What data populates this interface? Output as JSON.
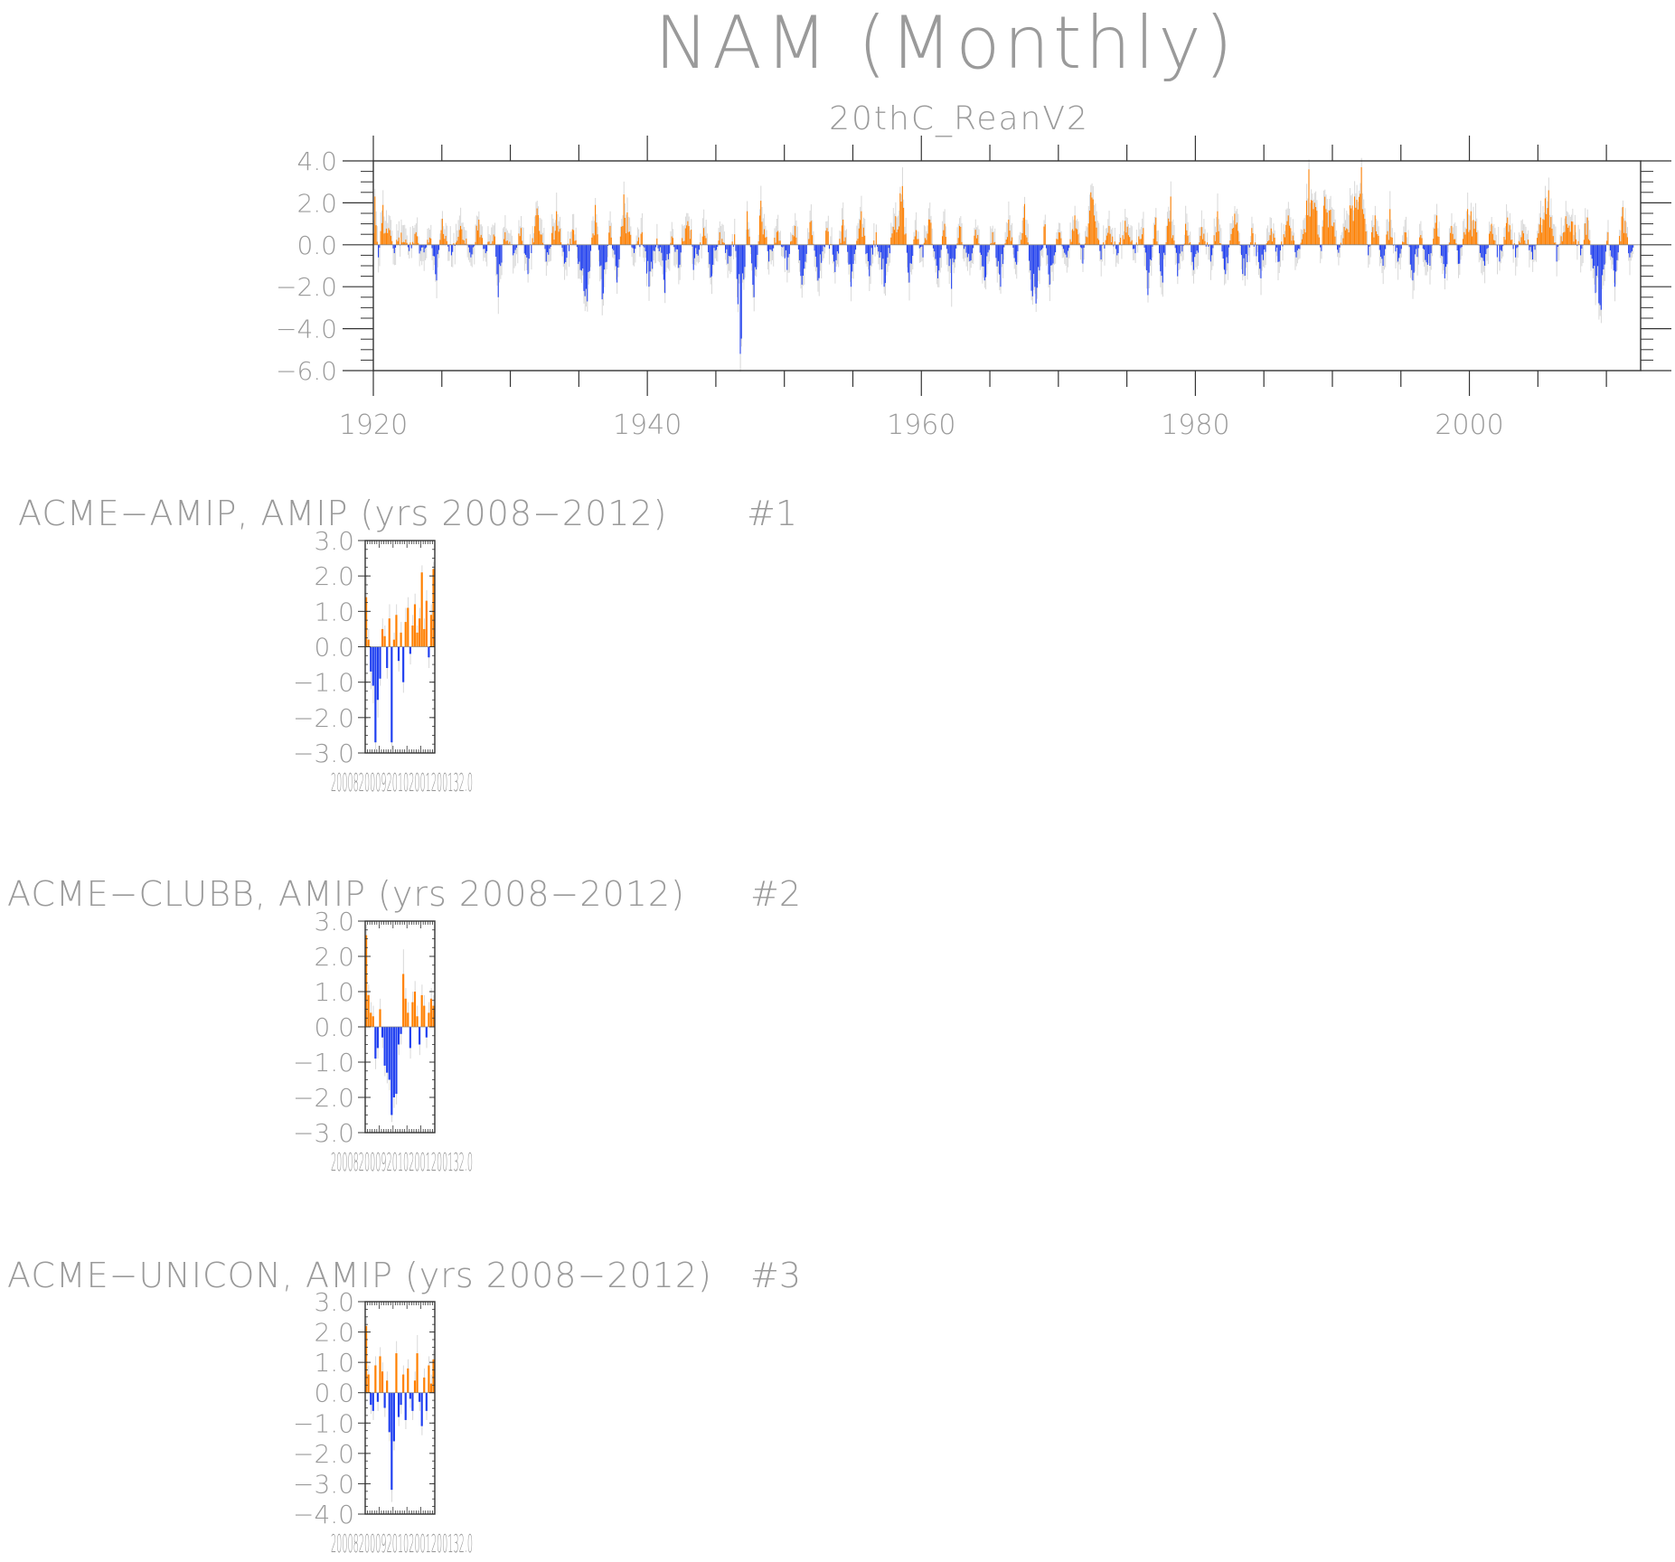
{
  "figure": {
    "title": "NAM (Monthly)"
  },
  "colors": {
    "positive": "#ff8000",
    "negative": "#1f3ff0",
    "text": "#9a9a9a",
    "axis": "#333333"
  },
  "chart_data": [
    {
      "type": "bar",
      "subtitle": "20thC_ReanV2",
      "x_start": 1920.0,
      "x_end": 2012.0,
      "xlim": [
        1920,
        2012.5
      ],
      "ylim": [
        -6.0,
        4.0
      ],
      "xticks": [
        1920,
        1940,
        1960,
        1980,
        2000
      ],
      "yticks": [
        "4.0",
        "2.0",
        "0.0",
        "−2.0",
        "−4.0",
        "−6.0"
      ],
      "ytick_values": [
        4,
        2,
        0,
        -2,
        -4,
        -6
      ],
      "keypoints": [
        [
          1920.1,
          2.3
        ],
        [
          1920.4,
          -0.6
        ],
        [
          1920.7,
          1.9
        ],
        [
          1921.2,
          0.7
        ],
        [
          1921.5,
          -0.4
        ],
        [
          1922.0,
          0.5
        ],
        [
          1922.6,
          -0.3
        ],
        [
          1923.1,
          0.6
        ],
        [
          1923.5,
          -0.7
        ],
        [
          1924.2,
          0.3
        ],
        [
          1924.6,
          -1.7
        ],
        [
          1925.0,
          1.4
        ],
        [
          1925.7,
          -0.5
        ],
        [
          1926.4,
          0.9
        ],
        [
          1927.1,
          -0.6
        ],
        [
          1927.7,
          1.2
        ],
        [
          1928.2,
          -0.4
        ],
        [
          1928.9,
          0.4
        ],
        [
          1929.1,
          -2.5
        ],
        [
          1929.6,
          0.6
        ],
        [
          1930.2,
          -0.5
        ],
        [
          1930.8,
          0.8
        ],
        [
          1931.3,
          -1.4
        ],
        [
          1932.0,
          1.9
        ],
        [
          1932.6,
          -0.8
        ],
        [
          1933.4,
          1.6
        ],
        [
          1934.0,
          -0.9
        ],
        [
          1934.6,
          0.7
        ],
        [
          1935.1,
          -1.2
        ],
        [
          1935.6,
          -2.7
        ],
        [
          1936.2,
          1.9
        ],
        [
          1936.7,
          -2.6
        ],
        [
          1937.3,
          0.9
        ],
        [
          1937.8,
          -1.8
        ],
        [
          1938.3,
          2.4
        ],
        [
          1939.0,
          -0.7
        ],
        [
          1939.6,
          0.6
        ],
        [
          1940.1,
          -2.0
        ],
        [
          1940.7,
          0.3
        ],
        [
          1941.3,
          -2.3
        ],
        [
          1941.8,
          0.4
        ],
        [
          1942.3,
          -1.1
        ],
        [
          1943.0,
          2.3
        ],
        [
          1943.4,
          -1.2
        ],
        [
          1944.1,
          0.8
        ],
        [
          1944.7,
          -1.5
        ],
        [
          1945.3,
          0.6
        ],
        [
          1945.9,
          -0.9
        ],
        [
          1946.4,
          0.5
        ],
        [
          1946.8,
          -5.2
        ],
        [
          1947.3,
          1.6
        ],
        [
          1947.8,
          -2.5
        ],
        [
          1948.3,
          2.1
        ],
        [
          1948.9,
          -0.8
        ],
        [
          1949.5,
          0.7
        ],
        [
          1950.2,
          -1.2
        ],
        [
          1950.8,
          0.9
        ],
        [
          1951.3,
          -1.9
        ],
        [
          1952.0,
          1.3
        ],
        [
          1952.5,
          -2.2
        ],
        [
          1953.1,
          0.8
        ],
        [
          1953.7,
          -1.3
        ],
        [
          1954.3,
          1.2
        ],
        [
          1954.9,
          -2.0
        ],
        [
          1955.6,
          1.6
        ],
        [
          1956.2,
          -1.5
        ],
        [
          1956.7,
          0.6
        ],
        [
          1957.3,
          -2.0
        ],
        [
          1958.0,
          1.1
        ],
        [
          1958.6,
          2.8
        ],
        [
          1959.1,
          -1.8
        ],
        [
          1959.6,
          0.7
        ],
        [
          1960.1,
          -0.6
        ],
        [
          1960.6,
          1.2
        ],
        [
          1961.2,
          -1.6
        ],
        [
          1961.7,
          1.0
        ],
        [
          1962.2,
          -2.1
        ],
        [
          1962.8,
          0.9
        ],
        [
          1963.5,
          -1.1
        ],
        [
          1964.0,
          0.8
        ],
        [
          1964.6,
          -1.7
        ],
        [
          1965.2,
          0.6
        ],
        [
          1965.8,
          -2.0
        ],
        [
          1966.4,
          1.2
        ],
        [
          1967.0,
          -1.3
        ],
        [
          1967.5,
          2.2
        ],
        [
          1968.0,
          -2.3
        ],
        [
          1968.4,
          -2.8
        ],
        [
          1969.0,
          1.1
        ],
        [
          1969.4,
          -1.9
        ],
        [
          1970.0,
          0.8
        ],
        [
          1970.6,
          -0.6
        ],
        [
          1971.2,
          1.4
        ],
        [
          1971.8,
          -0.9
        ],
        [
          1972.4,
          2.5
        ],
        [
          1973.1,
          -0.7
        ],
        [
          1973.7,
          0.9
        ],
        [
          1974.3,
          -0.5
        ],
        [
          1975.0,
          1.2
        ],
        [
          1975.6,
          -0.4
        ],
        [
          1976.2,
          0.8
        ],
        [
          1976.5,
          -3.0
        ],
        [
          1977.1,
          1.3
        ],
        [
          1977.6,
          -1.8
        ],
        [
          1978.2,
          2.3
        ],
        [
          1978.7,
          -1.5
        ],
        [
          1979.3,
          1.0
        ],
        [
          1979.9,
          -1.2
        ],
        [
          1980.5,
          0.9
        ],
        [
          1981.1,
          -0.8
        ],
        [
          1981.6,
          1.6
        ],
        [
          1982.2,
          -1.4
        ],
        [
          1983.0,
          1.9
        ],
        [
          1983.5,
          -2.1
        ],
        [
          1984.1,
          0.8
        ],
        [
          1984.8,
          -1.6
        ],
        [
          1985.5,
          1.0
        ],
        [
          1986.1,
          -0.8
        ],
        [
          1986.8,
          1.4
        ],
        [
          1987.4,
          -0.6
        ],
        [
          1988.0,
          1.2
        ],
        [
          1988.3,
          3.6
        ],
        [
          1988.8,
          1.8
        ],
        [
          1989.2,
          -0.3
        ],
        [
          1989.5,
          3.5
        ],
        [
          1990.0,
          1.6
        ],
        [
          1990.5,
          -0.4
        ],
        [
          1991.0,
          1.4
        ],
        [
          1991.6,
          2.3
        ],
        [
          1992.1,
          3.7
        ],
        [
          1992.6,
          -0.5
        ],
        [
          1993.1,
          1.4
        ],
        [
          1993.7,
          -1.0
        ],
        [
          1994.2,
          1.7
        ],
        [
          1994.8,
          -0.8
        ],
        [
          1995.3,
          0.6
        ],
        [
          1995.9,
          -1.7
        ],
        [
          1996.5,
          0.8
        ],
        [
          1997.0,
          -1.4
        ],
        [
          1997.6,
          1.4
        ],
        [
          1998.2,
          -1.6
        ],
        [
          1998.7,
          0.9
        ],
        [
          1999.3,
          -0.9
        ],
        [
          1999.9,
          1.7
        ],
        [
          2000.5,
          1.2
        ],
        [
          2001.0,
          -1.9
        ],
        [
          2001.6,
          1.0
        ],
        [
          2002.2,
          -0.8
        ],
        [
          2002.8,
          1.3
        ],
        [
          2003.4,
          -0.6
        ],
        [
          2004.0,
          0.9
        ],
        [
          2004.6,
          -0.7
        ],
        [
          2005.2,
          1.3
        ],
        [
          2005.8,
          2.6
        ],
        [
          2006.4,
          -0.8
        ],
        [
          2007.0,
          1.2
        ],
        [
          2007.5,
          1.4
        ],
        [
          2008.1,
          -0.5
        ],
        [
          2008.6,
          1.3
        ],
        [
          2009.2,
          -2.3
        ],
        [
          2009.6,
          -3.1
        ],
        [
          2010.1,
          0.6
        ],
        [
          2010.6,
          -2.0
        ],
        [
          2011.2,
          1.8
        ],
        [
          2011.7,
          -0.6
        ]
      ]
    },
    {
      "type": "bar",
      "title": "ACME−AMIP, AMIP (yrs 2008−2012)",
      "tag": "#1",
      "x_start": 2008,
      "x_end": 2013,
      "xlim": [
        2008,
        2013
      ],
      "ylim": [
        -3.0,
        3.0
      ],
      "xtick_text": "200082000920102001200132.0",
      "yticks": [
        "3.0",
        "2.0",
        "1.0",
        "0.0",
        "−1.0",
        "−2.0",
        "−3.0"
      ],
      "ytick_values": [
        3,
        2,
        1,
        0,
        -1,
        -2,
        -3
      ],
      "values": [
        1.4,
        0.2,
        -0.7,
        -1.1,
        -2.7,
        -1.5,
        -0.9,
        0.5,
        0.3,
        -0.6,
        0.8,
        -2.7,
        0.2,
        0.9,
        -0.4,
        0.4,
        -1.0,
        0.7,
        1.1,
        -0.2,
        0.6,
        1.2,
        0.4,
        0.8,
        2.1,
        0.5,
        1.3,
        -0.3,
        0.9,
        2.2
      ],
      "faint": [
        2.0,
        0.5,
        -1.2,
        -1.6,
        -2.9,
        -2.0,
        -1.1,
        0.8,
        0.6,
        -0.9,
        1.2,
        -2.9,
        0.4,
        1.2,
        -0.7,
        0.7,
        -1.3,
        1.1,
        1.4,
        -0.5,
        0.9,
        1.5,
        0.6,
        1.1,
        2.3,
        0.8,
        1.6,
        -0.6,
        1.2,
        2.4
      ]
    },
    {
      "type": "bar",
      "title": "ACME−CLUBB, AMIP (yrs 2008−2012)",
      "tag": "#2",
      "x_start": 2008,
      "x_end": 2013,
      "xlim": [
        2008,
        2013
      ],
      "ylim": [
        -3.0,
        3.0
      ],
      "xtick_text": "200082000920102001200132.0",
      "yticks": [
        "3.0",
        "2.0",
        "1.0",
        "0.0",
        "−1.0",
        "−2.0",
        "−3.0"
      ],
      "ytick_values": [
        3,
        2,
        1,
        0,
        -1,
        -2,
        -3
      ],
      "values": [
        2.6,
        0.9,
        0.4,
        0.3,
        -0.9,
        -0.6,
        0.5,
        -0.3,
        -1.1,
        -1.3,
        -1.5,
        -2.5,
        -2.0,
        -1.9,
        -0.5,
        -0.2,
        1.5,
        0.8,
        0.4,
        -0.6,
        0.7,
        1.0,
        0.3,
        -0.5,
        0.9,
        0.6,
        -0.3,
        0.4,
        0.8,
        0.6
      ],
      "faint": [
        2.9,
        1.2,
        0.7,
        0.6,
        -1.2,
        -0.9,
        0.8,
        -0.6,
        -1.4,
        -1.6,
        -1.8,
        -2.7,
        -2.3,
        -2.2,
        -0.8,
        -0.5,
        2.2,
        1.1,
        0.7,
        -0.9,
        1.0,
        1.3,
        0.6,
        -0.8,
        1.2,
        0.9,
        -0.6,
        0.7,
        1.1,
        0.9
      ]
    },
    {
      "type": "bar",
      "title": "ACME−UNICON, AMIP (yrs 2008−2012)",
      "tag": "#3",
      "x_start": 2008,
      "x_end": 2013,
      "xlim": [
        2008,
        2013
      ],
      "ylim": [
        -4.0,
        3.0
      ],
      "xtick_text": "200082000920102001200132.0",
      "yticks": [
        "3.0",
        "2.0",
        "1.0",
        "0.0",
        "−1.0",
        "−2.0",
        "−3.0",
        "−4.0"
      ],
      "ytick_values": [
        3,
        2,
        1,
        0,
        -1,
        -2,
        -3,
        -4
      ],
      "values": [
        2.2,
        0.6,
        -0.4,
        -0.6,
        0.9,
        -0.3,
        1.2,
        0.7,
        -0.5,
        0.4,
        -1.3,
        -3.2,
        -1.6,
        1.3,
        -0.8,
        -0.4,
        0.6,
        -0.9,
        0.8,
        -0.2,
        -0.6,
        0.4,
        1.3,
        -0.3,
        -1.1,
        0.5,
        -0.6,
        0.9,
        0.3,
        1.1
      ],
      "faint": [
        2.5,
        0.9,
        -0.7,
        -0.9,
        1.2,
        -0.6,
        1.5,
        1.0,
        -0.8,
        0.7,
        -1.6,
        -3.6,
        -1.9,
        1.7,
        -1.1,
        -0.7,
        0.9,
        -1.2,
        1.1,
        -0.5,
        -0.9,
        0.7,
        1.9,
        -0.6,
        -1.4,
        0.8,
        -0.9,
        1.2,
        0.6,
        1.4
      ]
    }
  ]
}
